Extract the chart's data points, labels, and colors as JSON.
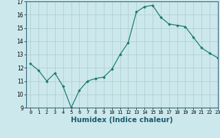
{
  "x": [
    0,
    1,
    2,
    3,
    4,
    5,
    6,
    7,
    8,
    9,
    10,
    11,
    12,
    13,
    14,
    15,
    16,
    17,
    18,
    19,
    20,
    21,
    22,
    23
  ],
  "y": [
    12.3,
    11.8,
    11.0,
    11.6,
    10.6,
    9.0,
    10.3,
    11.0,
    11.2,
    11.3,
    11.9,
    13.0,
    13.9,
    16.2,
    16.6,
    16.7,
    15.8,
    15.3,
    15.2,
    15.1,
    14.3,
    13.5,
    13.1,
    12.75
  ],
  "xlabel": "Humidex (Indice chaleur)",
  "ylim": [
    9,
    17
  ],
  "xlim": [
    -0.5,
    23
  ],
  "yticks": [
    9,
    10,
    11,
    12,
    13,
    14,
    15,
    16,
    17
  ],
  "xticks": [
    0,
    1,
    2,
    3,
    4,
    5,
    6,
    7,
    8,
    9,
    10,
    11,
    12,
    13,
    14,
    15,
    16,
    17,
    18,
    19,
    20,
    21,
    22,
    23
  ],
  "line_color": "#1a7a6e",
  "marker": "D",
  "marker_size": 1.8,
  "bg_color": "#cce8ec",
  "grid_color": "#aacccc",
  "xlabel_fontsize": 7.5,
  "tick_fontsize": 5.0,
  "ytick_fontsize": 5.5
}
